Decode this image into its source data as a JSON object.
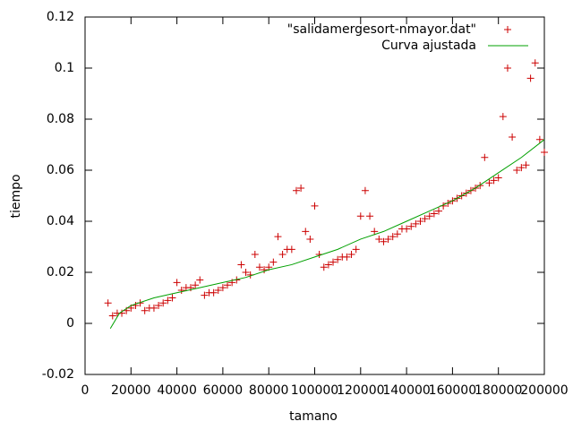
{
  "chart_data": {
    "type": "scatter",
    "xlabel": "tamano",
    "ylabel": "tiempo",
    "xlim": [
      0,
      200000
    ],
    "ylim": [
      -0.02,
      0.12
    ],
    "xticks": [
      0,
      20000,
      40000,
      60000,
      80000,
      100000,
      120000,
      140000,
      160000,
      180000,
      200000
    ],
    "yticks": [
      -0.02,
      0,
      0.02,
      0.04,
      0.06,
      0.08,
      0.1,
      0.12
    ],
    "legend": "top-right",
    "series": [
      {
        "name": "\"salidamergesort-nmayor.dat\"",
        "color": "#cc0000",
        "style": "points",
        "x": [
          10000,
          12000,
          14000,
          16000,
          18000,
          20000,
          22000,
          24000,
          26000,
          28000,
          30000,
          32000,
          34000,
          36000,
          38000,
          40000,
          42000,
          44000,
          46000,
          48000,
          50000,
          52000,
          54000,
          56000,
          58000,
          60000,
          62000,
          64000,
          66000,
          68000,
          70000,
          72000,
          74000,
          76000,
          78000,
          80000,
          82000,
          84000,
          86000,
          88000,
          90000,
          92000,
          94000,
          96000,
          98000,
          100000,
          102000,
          104000,
          106000,
          108000,
          110000,
          112000,
          114000,
          116000,
          118000,
          120000,
          122000,
          124000,
          126000,
          128000,
          130000,
          132000,
          134000,
          136000,
          138000,
          140000,
          142000,
          144000,
          146000,
          148000,
          150000,
          152000,
          154000,
          156000,
          158000,
          160000,
          162000,
          164000,
          166000,
          168000,
          170000,
          172000,
          174000,
          176000,
          178000,
          180000,
          182000,
          184000,
          186000,
          188000,
          190000,
          192000,
          194000,
          196000,
          198000,
          200000
        ],
        "values": [
          0.008,
          0.003,
          0.004,
          0.004,
          0.005,
          0.006,
          0.007,
          0.008,
          0.005,
          0.006,
          0.006,
          0.007,
          0.008,
          0.009,
          0.01,
          0.016,
          0.013,
          0.014,
          0.014,
          0.015,
          0.017,
          0.011,
          0.012,
          0.012,
          0.013,
          0.014,
          0.015,
          0.016,
          0.017,
          0.023,
          0.02,
          0.019,
          0.027,
          0.022,
          0.021,
          0.022,
          0.024,
          0.034,
          0.027,
          0.029,
          0.029,
          0.052,
          0.053,
          0.036,
          0.033,
          0.046,
          0.027,
          0.022,
          0.023,
          0.024,
          0.025,
          0.026,
          0.026,
          0.027,
          0.029,
          0.042,
          0.052,
          0.042,
          0.036,
          0.033,
          0.032,
          0.033,
          0.034,
          0.035,
          0.037,
          0.037,
          0.038,
          0.039,
          0.04,
          0.041,
          0.042,
          0.043,
          0.044,
          0.046,
          0.047,
          0.048,
          0.049,
          0.05,
          0.051,
          0.052,
          0.053,
          0.054,
          0.065,
          0.055,
          0.056,
          0.057,
          0.081,
          0.1,
          0.073,
          0.06,
          0.061,
          0.062,
          0.096,
          0.102,
          0.072,
          0.067
        ]
      },
      {
        "name": "Curva ajustada",
        "color": "#00a000",
        "style": "line",
        "x": [
          11000,
          15000,
          20000,
          30000,
          40000,
          50000,
          60000,
          70000,
          80000,
          90000,
          100000,
          110000,
          120000,
          130000,
          140000,
          150000,
          160000,
          170000,
          180000,
          190000,
          200000
        ],
        "values": [
          -0.002,
          0.004,
          0.007,
          0.01,
          0.012,
          0.014,
          0.016,
          0.018,
          0.021,
          0.023,
          0.026,
          0.029,
          0.033,
          0.036,
          0.04,
          0.044,
          0.048,
          0.053,
          0.059,
          0.065,
          0.072
        ]
      }
    ]
  }
}
